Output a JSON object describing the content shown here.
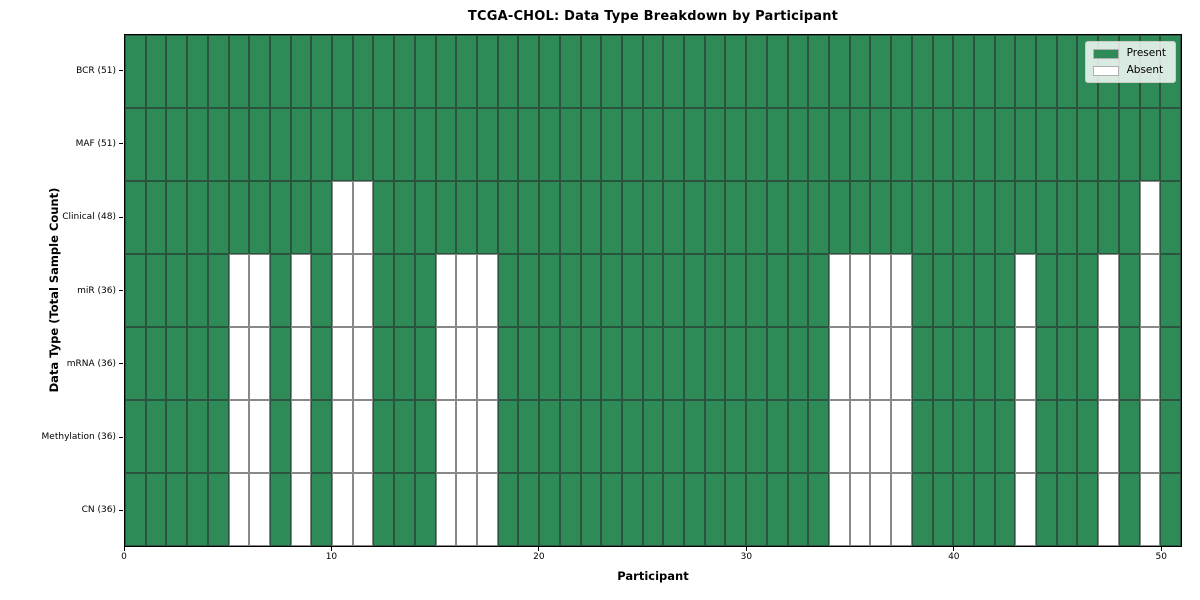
{
  "chart_data": {
    "type": "heatmap",
    "title": "TCGA-CHOL: Data Type Breakdown by Participant",
    "xlabel": "Participant",
    "ylabel": "Data Type (Total Sample Count)",
    "participants": 51,
    "x_range": [
      0,
      51
    ],
    "x_ticks": [
      0,
      10,
      20,
      30,
      40,
      50
    ],
    "grid": true,
    "rows": [
      {
        "data_type": "BCR",
        "label": "BCR (51)",
        "present_count": 51,
        "absent_participants": []
      },
      {
        "data_type": "MAF",
        "label": "MAF (51)",
        "present_count": 51,
        "absent_participants": []
      },
      {
        "data_type": "Clinical",
        "label": "Clinical (48)",
        "present_count": 48,
        "absent_participants": [
          10,
          11,
          49
        ]
      },
      {
        "data_type": "miR",
        "label": "miR (36)",
        "present_count": 36,
        "absent_participants": [
          5,
          6,
          8,
          10,
          11,
          15,
          16,
          17,
          34,
          35,
          36,
          37,
          43,
          47,
          49
        ]
      },
      {
        "data_type": "mRNA",
        "label": "mRNA (36)",
        "present_count": 36,
        "absent_participants": [
          5,
          6,
          8,
          10,
          11,
          15,
          16,
          17,
          34,
          35,
          36,
          37,
          43,
          47,
          49
        ]
      },
      {
        "data_type": "Methylation",
        "label": "Methylation (36)",
        "present_count": 36,
        "absent_participants": [
          5,
          6,
          8,
          10,
          11,
          15,
          16,
          17,
          34,
          35,
          36,
          37,
          43,
          47,
          49
        ]
      },
      {
        "data_type": "CN",
        "label": "CN (36)",
        "present_count": 36,
        "absent_participants": [
          5,
          6,
          8,
          10,
          11,
          15,
          16,
          17,
          34,
          35,
          36,
          37,
          43,
          47,
          49
        ]
      }
    ],
    "legend": {
      "position": "upper right",
      "entries": [
        {
          "label": "Present",
          "color": "#2e8b57"
        },
        {
          "label": "Absent",
          "color": "#ffffff"
        }
      ]
    },
    "colors": {
      "present": "#2e8b57",
      "absent": "#ffffff",
      "grid": "rgba(40,40,40,0.55)",
      "frame": "#000000"
    }
  }
}
